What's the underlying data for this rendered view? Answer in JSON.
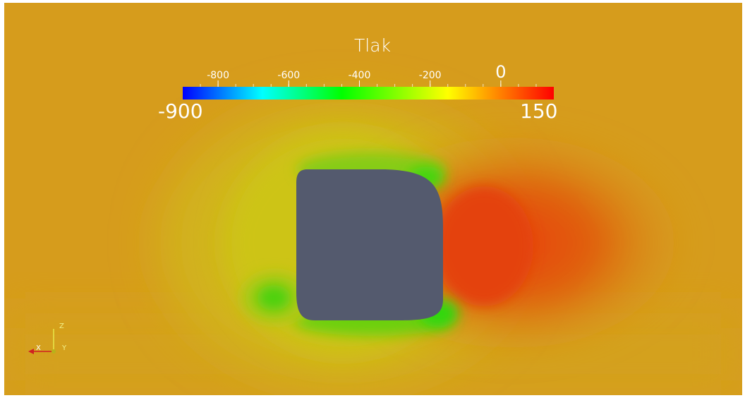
{
  "colorbar": {
    "title": "Tlak",
    "range_min_label": "-900",
    "range_max_label": "150",
    "range": [
      -900,
      150
    ],
    "ticks": [
      {
        "value": -800,
        "label": "-800"
      },
      {
        "value": -600,
        "label": "-600"
      },
      {
        "value": -400,
        "label": "-400"
      },
      {
        "value": -200,
        "label": "-200"
      },
      {
        "value": 0,
        "label": "0"
      }
    ],
    "colormap": [
      {
        "value": -900,
        "color": "#0000ff"
      },
      {
        "value": -675,
        "color": "#00ffff"
      },
      {
        "value": -450,
        "color": "#00ff00"
      },
      {
        "value": -150,
        "color": "#ffff00"
      },
      {
        "value": 150,
        "color": "#ff0000"
      }
    ]
  },
  "orientation_axes": {
    "z_label": "Z",
    "x_label": "X",
    "y_label": "Y",
    "z_color": "#e8e84a",
    "x_color": "#d02020",
    "y_color": "#e8e84a"
  },
  "scene": {
    "background_field_color": "#d79a1a",
    "body_color": "#545a6e"
  }
}
